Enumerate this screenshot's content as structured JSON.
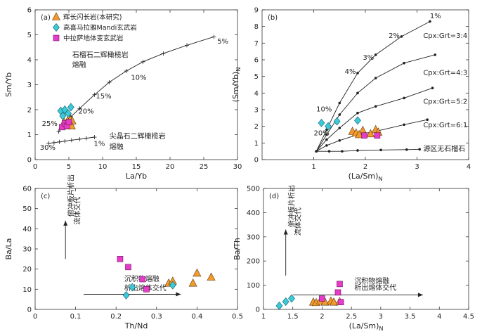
{
  "chart_data": [
    {
      "panel": "(a)",
      "type": "scatter",
      "xlabel": "La/Yb",
      "ylabel": "Sm/Yb",
      "xlim": [
        0,
        30
      ],
      "ylim": [
        0,
        6
      ],
      "xticks": [
        0,
        5,
        10,
        15,
        20,
        25,
        30
      ],
      "yticks": [
        0,
        1,
        2,
        3,
        4,
        5,
        6
      ],
      "legend_position": "top-left",
      "series": [
        {
          "name": "辉长闪长岩(本研究)",
          "marker": "triangle",
          "color": "#f29a2e",
          "points": [
            [
              4.1,
              1.35
            ],
            [
              4.3,
              1.5
            ],
            [
              4.6,
              1.4
            ],
            [
              4.8,
              1.55
            ],
            [
              5.0,
              1.45
            ],
            [
              5.2,
              1.6
            ],
            [
              5.5,
              1.55
            ],
            [
              5.4,
              1.35
            ]
          ]
        },
        {
          "name": "高喜马拉雅Mandi玄武岩",
          "marker": "diamond",
          "color": "#3cc9d9",
          "points": [
            [
              3.8,
              1.95
            ],
            [
              4.1,
              1.75
            ],
            [
              4.4,
              2.0
            ],
            [
              4.9,
              1.85
            ],
            [
              5.3,
              2.1
            ]
          ]
        },
        {
          "name": "中拉萨地体变玄武岩",
          "marker": "square",
          "color": "#e63cc8",
          "points": [
            [
              4.0,
              1.3
            ],
            [
              4.4,
              1.45
            ],
            [
              4.7,
              1.35
            ],
            [
              5.0,
              1.5
            ]
          ]
        }
      ],
      "curves": [
        {
          "label": "石榴石二辉橄榄岩 熔融",
          "points": [
            [
              3.5,
              1.12
            ],
            [
              4.4,
              1.4
            ],
            [
              5.3,
              1.72
            ],
            [
              6.6,
              2.05
            ],
            [
              8.8,
              2.6
            ],
            [
              11.0,
              3.1
            ],
            [
              13.5,
              3.55
            ],
            [
              16.0,
              3.92
            ],
            [
              19.0,
              4.25
            ],
            [
              22.5,
              4.58
            ],
            [
              26.5,
              4.92
            ]
          ]
        },
        {
          "label": "尖晶石二辉橄榄岩 熔融",
          "points": [
            [
              2.0,
              0.65
            ],
            [
              2.8,
              0.68
            ],
            [
              3.6,
              0.71
            ],
            [
              4.4,
              0.74
            ],
            [
              5.4,
              0.78
            ],
            [
              6.6,
              0.82
            ],
            [
              7.6,
              0.86
            ],
            [
              8.8,
              0.9
            ]
          ]
        }
      ],
      "annotations": [
        {
          "text": "5%",
          "x": 27.0,
          "y": 4.65
        },
        {
          "text": "10%",
          "x": 14.2,
          "y": 3.2
        },
        {
          "text": "15%",
          "x": 9.0,
          "y": 2.45
        },
        {
          "text": "20%",
          "x": 6.4,
          "y": 1.85
        },
        {
          "text": "25%",
          "x": 1.0,
          "y": 1.35
        },
        {
          "text": "30%",
          "x": 0.7,
          "y": 0.4
        },
        {
          "text": "1%",
          "x": 8.7,
          "y": 0.55
        },
        {
          "text": "石榴石二辉橄榄岩",
          "x": 5.5,
          "y": 4.1
        },
        {
          "text": "熔融",
          "x": 5.5,
          "y": 3.7
        },
        {
          "text": "尖晶石二辉橄榄岩",
          "x": 11.0,
          "y": 0.85
        },
        {
          "text": "熔融",
          "x": 11.0,
          "y": 0.42
        }
      ]
    },
    {
      "panel": "(b)",
      "type": "scatter",
      "xlabel": "(La/Sm)",
      "xlabel_sub": "N",
      "ylabel": "(Sm/Yb)",
      "ylabel_sub": "N",
      "xlim": [
        0,
        4
      ],
      "ylim": [
        0,
        9
      ],
      "xticks": [
        1,
        2,
        3,
        4
      ],
      "yticks": [
        0,
        1,
        2,
        3,
        4,
        5,
        6,
        7,
        8,
        9
      ],
      "series": [
        {
          "name": "辉长闪长岩(本研究)",
          "marker": "triangle",
          "color": "#f29a2e",
          "points": [
            [
              1.75,
              1.7
            ],
            [
              1.82,
              1.6
            ],
            [
              1.95,
              1.75
            ],
            [
              2.1,
              1.55
            ],
            [
              2.2,
              1.8
            ],
            [
              2.25,
              1.65
            ],
            [
              1.88,
              1.5
            ]
          ]
        },
        {
          "name": "高喜马拉雅Mandi玄武岩",
          "marker": "diamond",
          "color": "#3cc9d9",
          "points": [
            [
              1.15,
              2.2
            ],
            [
              1.28,
              2.0
            ],
            [
              1.45,
              2.3
            ],
            [
              1.85,
              2.35
            ]
          ]
        },
        {
          "name": "中拉萨地体变玄武岩",
          "marker": "square",
          "color": "#e63cc8",
          "points": [
            [
              1.98,
              1.45
            ],
            [
              2.23,
              1.45
            ]
          ]
        }
      ],
      "curves": [
        {
          "label": "Cpx:Grt=3:4",
          "points": [
            [
              1.05,
              0.5
            ],
            [
              1.25,
              1.8
            ],
            [
              1.5,
              3.4
            ],
            [
              1.85,
              5.2
            ],
            [
              2.2,
              6.3
            ],
            [
              2.7,
              7.4
            ],
            [
              3.25,
              8.3
            ]
          ]
        },
        {
          "label": "Cpx:Grt=4:3",
          "points": [
            [
              1.05,
              0.5
            ],
            [
              1.25,
              1.5
            ],
            [
              1.5,
              2.7
            ],
            [
              1.85,
              4.0
            ],
            [
              2.2,
              4.9
            ],
            [
              2.75,
              5.8
            ],
            [
              3.35,
              6.3
            ]
          ]
        },
        {
          "label": "Cpx:Grt=5:2",
          "points": [
            [
              1.05,
              0.5
            ],
            [
              1.25,
              1.2
            ],
            [
              1.5,
              1.9
            ],
            [
              1.85,
              2.8
            ],
            [
              2.2,
              3.2
            ],
            [
              2.75,
              3.7
            ],
            [
              3.3,
              4.3
            ]
          ]
        },
        {
          "label": "Cpx:Grt=6:1",
          "points": [
            [
              1.05,
              0.5
            ],
            [
              1.25,
              0.85
            ],
            [
              1.5,
              1.15
            ],
            [
              1.85,
              1.5
            ],
            [
              2.2,
              1.7
            ],
            [
              2.75,
              2.1
            ],
            [
              3.2,
              2.4
            ]
          ]
        },
        {
          "label": "源区无石榴石",
          "points": [
            [
              1.05,
              0.5
            ],
            [
              1.3,
              0.5
            ],
            [
              1.55,
              0.5
            ],
            [
              1.85,
              0.55
            ],
            [
              2.3,
              0.58
            ],
            [
              2.8,
              0.6
            ],
            [
              3.05,
              0.62
            ]
          ]
        }
      ],
      "annotations": [
        {
          "text": "1%",
          "x": 3.25,
          "y": 8.5
        },
        {
          "text": "2%",
          "x": 2.45,
          "y": 7.3
        },
        {
          "text": "3%",
          "x": 1.95,
          "y": 6.0
        },
        {
          "text": "4%",
          "x": 1.6,
          "y": 5.15
        },
        {
          "text": "10%",
          "x": 1.05,
          "y": 2.9
        },
        {
          "text": "20%",
          "x": 1.0,
          "y": 1.45
        },
        {
          "text": "Cpx:Grt=3:4",
          "x": 3.12,
          "y": 7.3
        },
        {
          "text": "Cpx:Grt=4:3",
          "x": 3.12,
          "y": 5.1
        },
        {
          "text": "Cpx:Grt=5:2",
          "x": 3.12,
          "y": 3.35
        },
        {
          "text": "Cpx:Grt=6:1",
          "x": 3.12,
          "y": 1.95
        },
        {
          "text": "源区无石榴石",
          "x": 3.12,
          "y": 0.5
        }
      ]
    },
    {
      "panel": "(c)",
      "type": "scatter",
      "xlabel": "Th/Nd",
      "ylabel": "Ba/La",
      "xlim": [
        0,
        0.5
      ],
      "ylim": [
        0,
        60
      ],
      "xticks": [
        0,
        0.1,
        0.2,
        0.3,
        0.4,
        0.5
      ],
      "yticks": [
        0,
        10,
        20,
        30,
        40,
        50,
        60
      ],
      "series": [
        {
          "name": "辉长闪长岩(本研究)",
          "marker": "triangle",
          "color": "#f29a2e",
          "points": [
            [
              0.33,
              13
            ],
            [
              0.34,
              14
            ],
            [
              0.39,
              13
            ],
            [
              0.4,
              18
            ],
            [
              0.435,
              16
            ]
          ]
        },
        {
          "name": "高喜马拉雅Mandi玄武岩",
          "marker": "diamond",
          "color": "#3cc9d9",
          "points": [
            [
              0.225,
              7
            ],
            [
              0.24,
              11
            ],
            [
              0.34,
              12
            ]
          ]
        },
        {
          "name": "中拉萨地体变玄武岩",
          "marker": "square",
          "color": "#e63cc8",
          "points": [
            [
              0.21,
              25
            ],
            [
              0.23,
              21
            ],
            [
              0.265,
              15
            ],
            [
              0.275,
              10
            ]
          ]
        }
      ],
      "arrows": [
        {
          "from": [
            0.075,
            25
          ],
          "to": [
            0.075,
            44
          ]
        },
        {
          "from": [
            0.12,
            7.5
          ],
          "to": [
            0.36,
            7.5
          ]
        }
      ],
      "annotations": [
        {
          "text": "俯冲板片析出",
          "x": 0.095,
          "y": 46,
          "vertical": true
        },
        {
          "text": "流体交代",
          "x": 0.11,
          "y": 42,
          "vertical": true
        },
        {
          "text": "沉积物熔融",
          "x": 0.22,
          "y": 14
        },
        {
          "text": "析出熔体交代",
          "x": 0.22,
          "y": 9.5
        }
      ]
    },
    {
      "panel": "(d)",
      "type": "scatter",
      "xlabel": "(La/Sm)",
      "xlabel_sub": "N",
      "ylabel": "Ba/Th",
      "xlim": [
        1.0,
        4.5
      ],
      "ylim": [
        0,
        500
      ],
      "xticks": [
        1.0,
        1.5,
        2.0,
        2.5,
        3.0,
        3.5,
        4.0,
        4.5
      ],
      "yticks": [
        0,
        100,
        200,
        300,
        400,
        500
      ],
      "series": [
        {
          "name": "辉长闪长岩(本研究)",
          "marker": "triangle",
          "color": "#f29a2e",
          "points": [
            [
              1.85,
              30
            ],
            [
              1.9,
              28
            ],
            [
              1.97,
              35
            ],
            [
              2.05,
              30
            ],
            [
              2.15,
              34
            ],
            [
              2.2,
              30
            ],
            [
              2.3,
              32
            ]
          ]
        },
        {
          "name": "高喜马拉雅Mandi玄武岩",
          "marker": "diamond",
          "color": "#3cc9d9",
          "points": [
            [
              1.27,
              15
            ],
            [
              1.38,
              32
            ],
            [
              1.48,
              45
            ]
          ]
        },
        {
          "name": "中拉萨地体变玄武岩",
          "marker": "square",
          "color": "#e63cc8",
          "points": [
            [
              2.0,
              45
            ],
            [
              2.27,
              70
            ],
            [
              2.3,
              105
            ],
            [
              2.32,
              30
            ]
          ]
        }
      ],
      "arrows": [
        {
          "from": [
            1.38,
            140
          ],
          "to": [
            1.38,
            330
          ]
        },
        {
          "from": [
            1.5,
            60
          ],
          "to": [
            3.72,
            60
          ]
        }
      ],
      "annotations": [
        {
          "text": "俯冲板片析出",
          "x": 1.52,
          "y": 340,
          "vertical": true
        },
        {
          "text": "流体交代",
          "x": 1.63,
          "y": 305,
          "vertical": true
        },
        {
          "text": "沉积物熔融",
          "x": 2.55,
          "y": 108
        },
        {
          "text": "析出熔体交代",
          "x": 2.55,
          "y": 80
        }
      ]
    }
  ]
}
